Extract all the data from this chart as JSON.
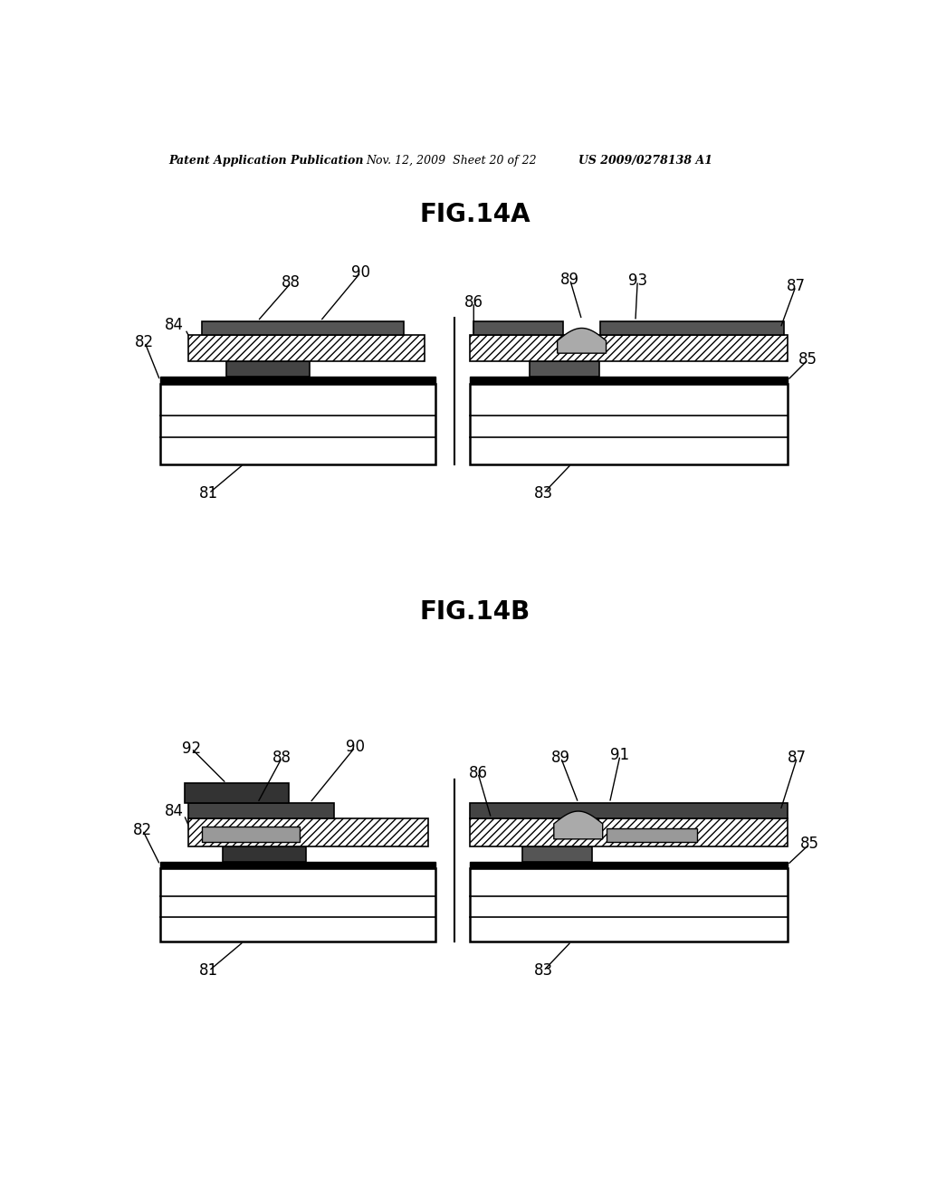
{
  "title_header": "Patent Application Publication",
  "date_header": "Nov. 12, 2009  Sheet 20 of 22",
  "patent_header": "US 2009/0278138 A1",
  "fig_a_title": "FIG.14A",
  "fig_b_title": "FIG.14B",
  "bg_color": "#ffffff"
}
